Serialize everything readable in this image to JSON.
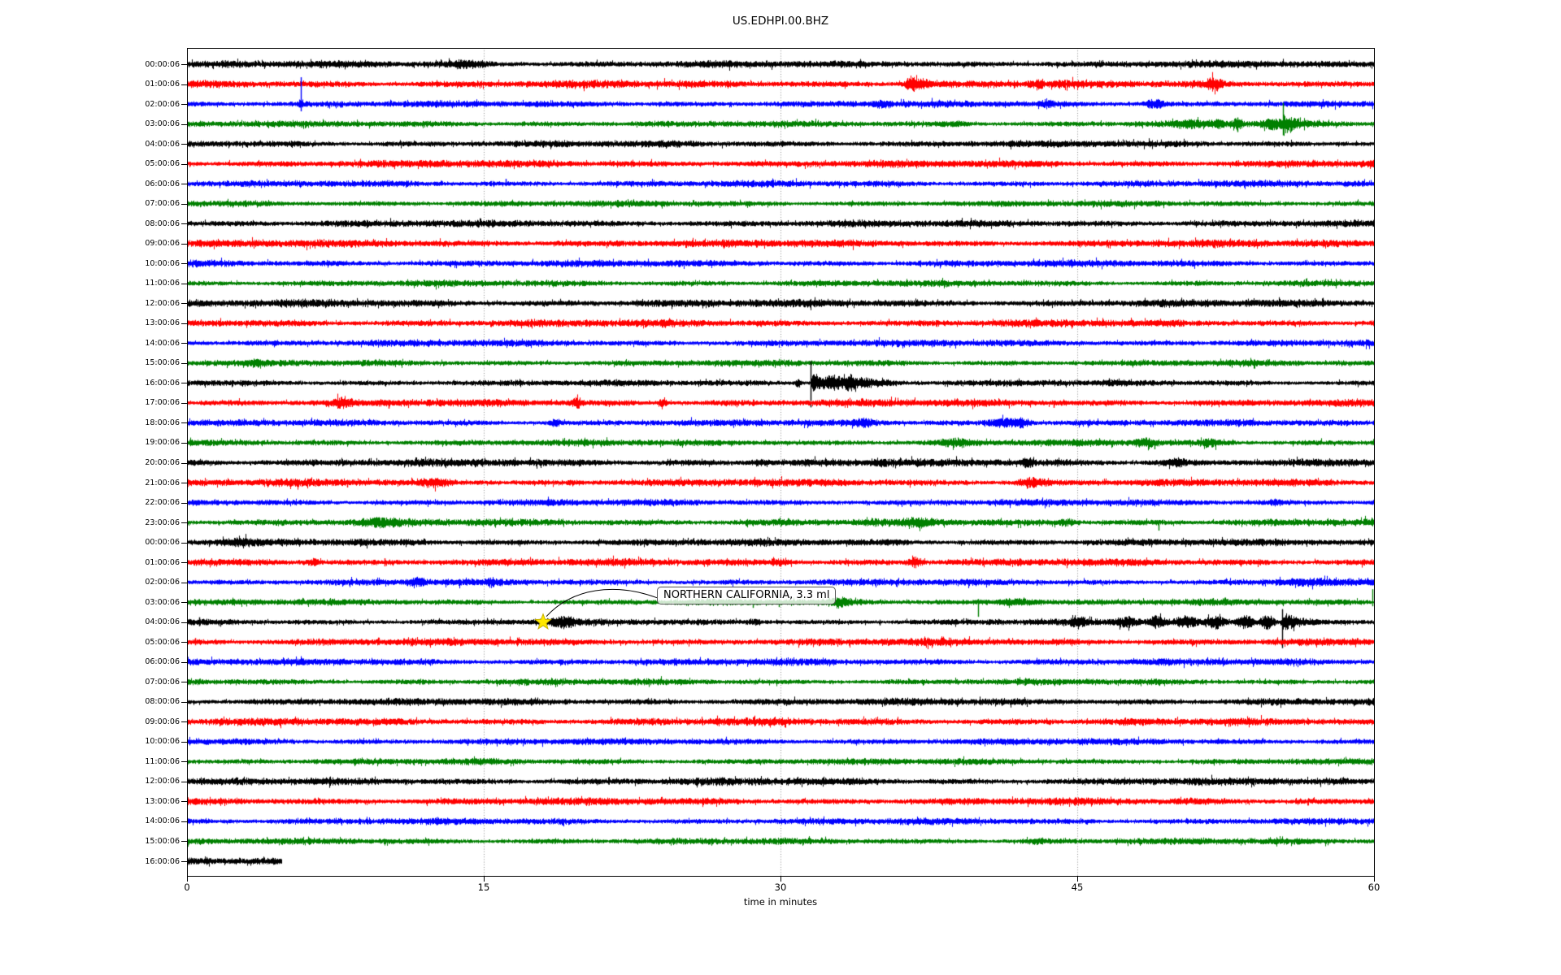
{
  "chart_data": {
    "type": "line",
    "plot_kind": "seismogram-dayplot",
    "title": "US.EDHPI.00.BHZ",
    "xlabel": "time in minutes",
    "ylabel": "",
    "xlim": [
      0,
      60
    ],
    "xticks": [
      0,
      15,
      30,
      45,
      60
    ],
    "grid_minutes": [
      15,
      30,
      45
    ],
    "grid_color": "#8a8a8a",
    "color_cycle": [
      "#000000",
      "#ff0000",
      "#0000ff",
      "#008000"
    ],
    "annotation": {
      "text": "NORTHERN CALIFORNIA, 3.3 ml",
      "row": 28,
      "minute": 18,
      "star_fill": "#ffe800",
      "star_edge": "#c8b400"
    },
    "rows": [
      {
        "label": "00:00:06",
        "color": "#000000",
        "base": 2.8,
        "events": [
          [
            "b",
            14,
            0.8,
            2.2
          ]
        ]
      },
      {
        "label": "01:00:06",
        "color": "#ff0000",
        "base": 3.0,
        "events": [
          [
            "b",
            36.6,
            0.18,
            6
          ],
          [
            "s",
            36.4,
            7,
            7
          ],
          [
            "b",
            37.2,
            0.3,
            3
          ],
          [
            "b",
            43,
            0.2,
            2
          ],
          [
            "b",
            51.9,
            0.3,
            4.5
          ],
          [
            "s",
            52.2,
            6,
            5
          ]
        ]
      },
      {
        "label": "02:00:06",
        "color": "#0000ff",
        "base": 2.6,
        "events": [
          [
            "s",
            5.75,
            33,
            9
          ],
          [
            "b",
            5.75,
            0.08,
            3
          ],
          [
            "b",
            35,
            0.3,
            2
          ],
          [
            "b",
            43.5,
            0.25,
            2.5
          ],
          [
            "b",
            48.9,
            0.35,
            3.5
          ]
        ]
      },
      {
        "label": "03:00:06",
        "color": "#008000",
        "base": 2.5,
        "events": [
          [
            "b",
            38.8,
            0.6,
            1.5
          ],
          [
            "b",
            50.6,
            0.5,
            2.5
          ],
          [
            "b",
            52.1,
            0.3,
            2.5
          ],
          [
            "s",
            53.1,
            8,
            10
          ],
          [
            "b",
            53.1,
            0.15,
            4
          ],
          [
            "b",
            54.9,
            0.4,
            3.5
          ],
          [
            "s",
            55.4,
            26,
            14
          ],
          [
            "d",
            55.4,
            7,
            0.7
          ]
        ]
      },
      {
        "label": "04:00:06",
        "color": "#000000",
        "base": 2.7,
        "events": []
      },
      {
        "label": "05:00:06",
        "color": "#ff0000",
        "base": 2.9,
        "events": [
          [
            "s",
            56.9,
            5,
            4
          ]
        ]
      },
      {
        "label": "06:00:06",
        "color": "#0000ff",
        "base": 2.6,
        "events": [
          [
            "s",
            16.1,
            6,
            3
          ]
        ]
      },
      {
        "label": "07:00:06",
        "color": "#008000",
        "base": 2.5,
        "events": []
      },
      {
        "label": "08:00:06",
        "color": "#000000",
        "base": 2.8,
        "events": []
      },
      {
        "label": "09:00:06",
        "color": "#ff0000",
        "base": 3.0,
        "events": []
      },
      {
        "label": "10:00:06",
        "color": "#0000ff",
        "base": 2.7,
        "events": []
      },
      {
        "label": "11:00:06",
        "color": "#008000",
        "base": 2.5,
        "events": []
      },
      {
        "label": "12:00:06",
        "color": "#000000",
        "base": 3.0,
        "events": []
      },
      {
        "label": "13:00:06",
        "color": "#ff0000",
        "base": 2.9,
        "events": []
      },
      {
        "label": "14:00:06",
        "color": "#0000ff",
        "base": 2.7,
        "events": []
      },
      {
        "label": "15:00:06",
        "color": "#008000",
        "base": 2.5,
        "events": [
          [
            "b",
            3.5,
            0.3,
            1.5
          ]
        ]
      },
      {
        "label": "16:00:06",
        "color": "#000000",
        "base": 2.5,
        "events": [
          [
            "b",
            30.9,
            0.1,
            4
          ],
          [
            "s",
            31.5,
            27,
            30
          ],
          [
            "d",
            31.5,
            8,
            1.1
          ],
          [
            "b",
            32.7,
            0.25,
            5
          ],
          [
            "b",
            33.5,
            0.2,
            6
          ],
          [
            "b",
            34.3,
            0.3,
            3
          ],
          [
            "b",
            35.2,
            0.3,
            2
          ],
          [
            "s",
            46.6,
            5,
            4
          ]
        ]
      },
      {
        "label": "17:00:06",
        "color": "#ff0000",
        "base": 2.9,
        "events": [
          [
            "b",
            7.8,
            0.3,
            3
          ],
          [
            "s",
            10.2,
            4,
            7
          ],
          [
            "b",
            19.7,
            0.15,
            4
          ],
          [
            "b",
            24,
            0.15,
            3
          ],
          [
            "s",
            43.8,
            3,
            6
          ]
        ]
      },
      {
        "label": "18:00:06",
        "color": "#0000ff",
        "base": 2.6,
        "events": [
          [
            "b",
            18.6,
            0.2,
            2.5
          ],
          [
            "b",
            34.2,
            0.4,
            2.5
          ],
          [
            "b",
            41.3,
            0.5,
            3.5
          ],
          [
            "b",
            42.2,
            0.3,
            3
          ],
          [
            "s",
            45.6,
            4,
            3
          ]
        ]
      },
      {
        "label": "19:00:06",
        "color": "#008000",
        "base": 2.6,
        "events": [
          [
            "b",
            38.8,
            0.5,
            2.5
          ],
          [
            "b",
            48.4,
            0.4,
            3
          ],
          [
            "s",
            48.9,
            3,
            8
          ],
          [
            "b",
            51.7,
            0.3,
            2.5
          ]
        ]
      },
      {
        "label": "20:00:06",
        "color": "#000000",
        "base": 3.0,
        "events": [
          [
            "s",
            14.9,
            5,
            5
          ],
          [
            "b",
            29,
            0.3,
            2
          ],
          [
            "b",
            35,
            0.3,
            2
          ],
          [
            "b",
            42.5,
            0.2,
            3
          ],
          [
            "s",
            42.5,
            3,
            6
          ],
          [
            "b",
            50,
            0.4,
            2.5
          ]
        ]
      },
      {
        "label": "21:00:06",
        "color": "#ff0000",
        "base": 2.9,
        "events": [
          [
            "s",
            8.1,
            3,
            6
          ],
          [
            "b",
            12.5,
            0.5,
            2.5
          ],
          [
            "b",
            42.7,
            0.5,
            3
          ]
        ]
      },
      {
        "label": "22:00:06",
        "color": "#0000ff",
        "base": 2.6,
        "events": [
          [
            "b",
            55,
            0.3,
            1.5
          ]
        ]
      },
      {
        "label": "23:00:06",
        "color": "#008000",
        "base": 2.9,
        "events": [
          [
            "s",
            2.4,
            4,
            2
          ],
          [
            "s",
            3.6,
            4,
            2
          ],
          [
            "b",
            9.5,
            0.7,
            2
          ],
          [
            "b",
            37,
            0.4,
            2
          ],
          [
            "s",
            49.1,
            3,
            10
          ],
          [
            "b",
            44.5,
            0.3,
            2
          ]
        ]
      },
      {
        "label": "00:00:06",
        "color": "#000000",
        "base": 2.8,
        "events": [
          [
            "b",
            2.5,
            0.5,
            2
          ]
        ]
      },
      {
        "label": "01:00:06",
        "color": "#ff0000",
        "base": 2.9,
        "events": [
          [
            "b",
            6.4,
            0.2,
            2.5
          ],
          [
            "s",
            10,
            5,
            5
          ],
          [
            "b",
            30,
            0.3,
            2
          ],
          [
            "b",
            36.8,
            0.25,
            3.5
          ]
        ]
      },
      {
        "label": "02:00:06",
        "color": "#0000ff",
        "base": 2.6,
        "events": [
          [
            "b",
            11.6,
            0.3,
            2.5
          ],
          [
            "b",
            15.4,
            0.2,
            2
          ],
          [
            "b",
            56.5,
            1,
            2
          ]
        ]
      },
      {
        "label": "03:00:06",
        "color": "#008000",
        "base": 2.5,
        "events": [
          [
            "s",
            28.6,
            3,
            7
          ],
          [
            "s",
            29.9,
            3,
            6
          ],
          [
            "s",
            31.9,
            3,
            5
          ],
          [
            "b",
            33,
            0.4,
            2.5
          ],
          [
            "s",
            40,
            4,
            18
          ],
          [
            "b",
            42,
            0.8,
            2.5
          ],
          [
            "s",
            59.9,
            16,
            5
          ]
        ]
      },
      {
        "label": "04:00:06",
        "color": "#000000",
        "base": 2.5,
        "events": [
          [
            "s",
            0.6,
            6,
            5
          ],
          [
            "b",
            19,
            0.5,
            3.5
          ],
          [
            "b",
            28.6,
            0.3,
            1.5
          ],
          [
            "s",
            35,
            3,
            4
          ],
          [
            "s",
            41,
            4,
            3
          ],
          [
            "s",
            43,
            4,
            3
          ],
          [
            "b",
            45,
            0.3,
            2.5
          ],
          [
            "b",
            47.5,
            0.4,
            3.5
          ],
          [
            "b",
            49,
            0.3,
            4.5
          ],
          [
            "b",
            50.5,
            0.4,
            4
          ],
          [
            "b",
            52,
            0.3,
            5
          ],
          [
            "b",
            53.5,
            0.3,
            5.5
          ],
          [
            "b",
            54.6,
            0.25,
            6.5
          ],
          [
            "s",
            55.35,
            16,
            32
          ],
          [
            "d",
            55.35,
            9,
            0.8
          ]
        ]
      },
      {
        "label": "05:00:06",
        "color": "#ff0000",
        "base": 2.9,
        "events": [
          [
            "s",
            0.4,
            5,
            4
          ]
        ]
      },
      {
        "label": "06:00:06",
        "color": "#0000ff",
        "base": 2.7,
        "events": []
      },
      {
        "label": "07:00:06",
        "color": "#008000",
        "base": 2.5,
        "events": []
      },
      {
        "label": "08:00:06",
        "color": "#000000",
        "base": 2.8,
        "events": []
      },
      {
        "label": "09:00:06",
        "color": "#ff0000",
        "base": 2.9,
        "events": []
      },
      {
        "label": "10:00:06",
        "color": "#0000ff",
        "base": 2.6,
        "events": []
      },
      {
        "label": "11:00:06",
        "color": "#008000",
        "base": 2.5,
        "events": []
      },
      {
        "label": "12:00:06",
        "color": "#000000",
        "base": 2.9,
        "events": []
      },
      {
        "label": "13:00:06",
        "color": "#ff0000",
        "base": 2.9,
        "events": []
      },
      {
        "label": "14:00:06",
        "color": "#0000ff",
        "base": 2.6,
        "events": [
          [
            "s",
            55.5,
            4,
            3
          ]
        ]
      },
      {
        "label": "15:00:06",
        "color": "#008000",
        "base": 2.5,
        "events": [
          [
            "b",
            43,
            0.3,
            1.5
          ]
        ]
      },
      {
        "label": "16:00:06",
        "color": "#000000",
        "base": 3.1,
        "end": 4.8,
        "events": []
      }
    ]
  }
}
